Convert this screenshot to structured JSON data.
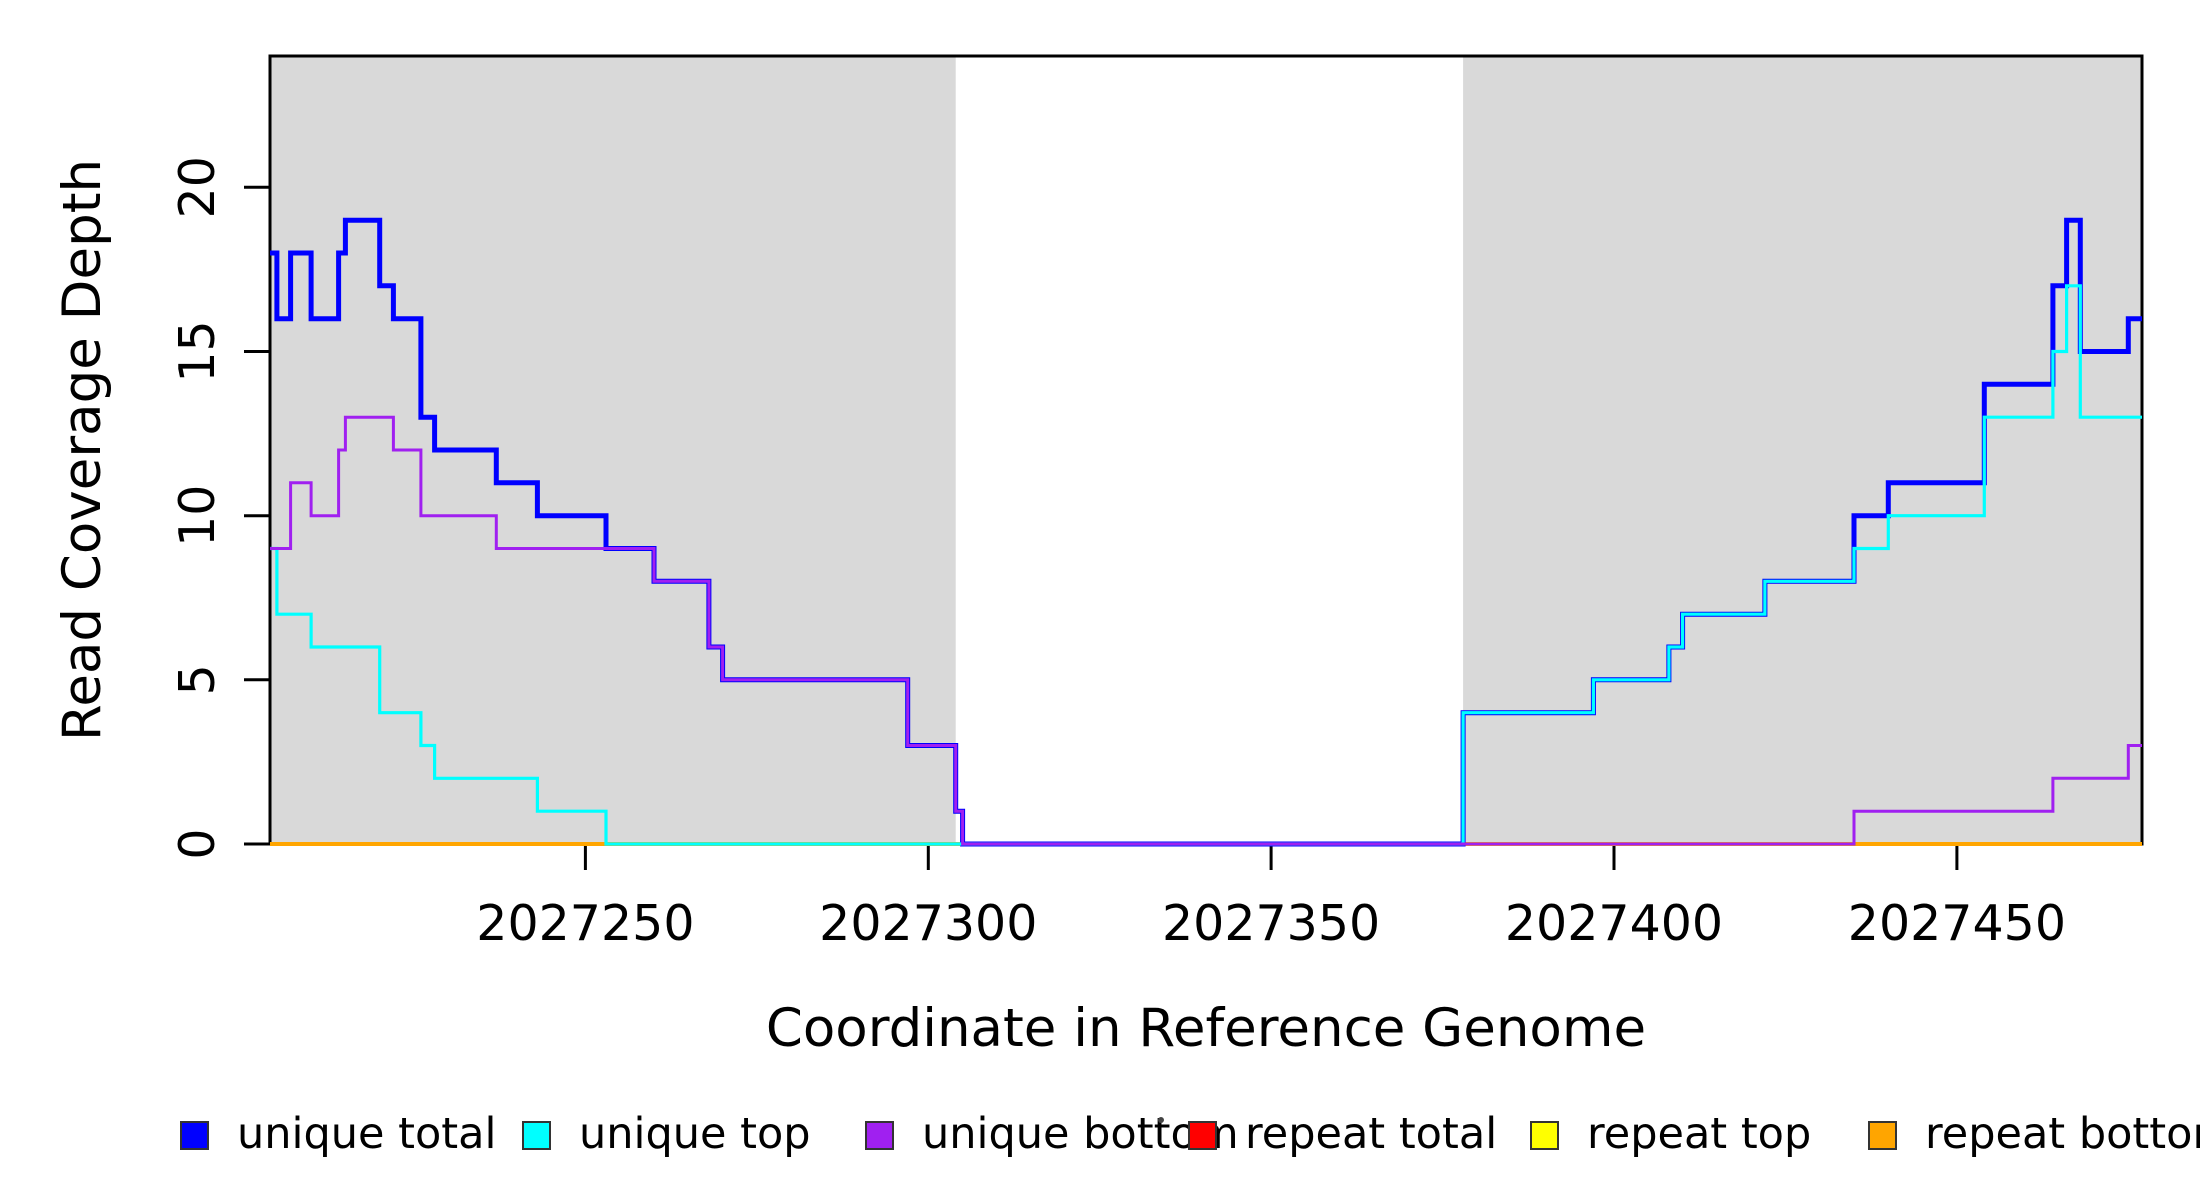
{
  "figure": {
    "background": "#FFFFFF",
    "plot_background": "#FFFFFF"
  },
  "chart_data": {
    "type": "line",
    "subtype": "step",
    "title": "",
    "xlabel": "Coordinate in Reference Genome",
    "ylabel": "Read Coverage Depth",
    "xlim": [
      2027204,
      2027477
    ],
    "ylim": [
      0,
      24
    ],
    "x_ticks": [
      2027250,
      2027300,
      2027350,
      2027400,
      2027450
    ],
    "x_tick_labels": [
      "2027250",
      "2027300",
      "2027350",
      "2027400",
      "2027450"
    ],
    "y_ticks": [
      0,
      5,
      10,
      15,
      20
    ],
    "y_tick_labels": [
      "0",
      "5",
      "10",
      "15",
      "20"
    ],
    "grid": false,
    "box_color": "#000000",
    "shaded_regions": [
      {
        "x_start": 2027204,
        "x_end": 2027304,
        "color": "#D9D9D9"
      },
      {
        "x_start": 2027378,
        "x_end": 2027477,
        "color": "#D9D9D9"
      }
    ],
    "series": [
      {
        "name": "unique total",
        "color": "#0000FF",
        "lwd": 5,
        "steps": [
          [
            2027204,
            18
          ],
          [
            2027205,
            16
          ],
          [
            2027207,
            18
          ],
          [
            2027210,
            16
          ],
          [
            2027214,
            18
          ],
          [
            2027215,
            19
          ],
          [
            2027220,
            17
          ],
          [
            2027222,
            16
          ],
          [
            2027226,
            13
          ],
          [
            2027228,
            12
          ],
          [
            2027237,
            11
          ],
          [
            2027243,
            10
          ],
          [
            2027253,
            9
          ],
          [
            2027260,
            8
          ],
          [
            2027268,
            6
          ],
          [
            2027270,
            5
          ],
          [
            2027297,
            3
          ],
          [
            2027304,
            1
          ],
          [
            2027305,
            0
          ],
          [
            2027378,
            4
          ],
          [
            2027397,
            5
          ],
          [
            2027408,
            6
          ],
          [
            2027410,
            7
          ],
          [
            2027422,
            8
          ],
          [
            2027435,
            10
          ],
          [
            2027440,
            11
          ],
          [
            2027454,
            14
          ],
          [
            2027464,
            17
          ],
          [
            2027466,
            19
          ],
          [
            2027468,
            15
          ],
          [
            2027475,
            16
          ]
        ]
      },
      {
        "name": "unique top",
        "color": "#00FFFF",
        "lwd": 3.2,
        "steps": [
          [
            2027204,
            9
          ],
          [
            2027205,
            7
          ],
          [
            2027210,
            6
          ],
          [
            2027220,
            4
          ],
          [
            2027226,
            3
          ],
          [
            2027228,
            2
          ],
          [
            2027243,
            1
          ],
          [
            2027253,
            0
          ],
          [
            2027378,
            4
          ],
          [
            2027397,
            5
          ],
          [
            2027408,
            6
          ],
          [
            2027410,
            7
          ],
          [
            2027422,
            8
          ],
          [
            2027435,
            9
          ],
          [
            2027440,
            10
          ],
          [
            2027454,
            13
          ],
          [
            2027464,
            15
          ],
          [
            2027466,
            17
          ],
          [
            2027468,
            13
          ]
        ]
      },
      {
        "name": "unique bottom",
        "color": "#A020F0",
        "lwd": 3,
        "steps": [
          [
            2027204,
            9
          ],
          [
            2027207,
            11
          ],
          [
            2027210,
            10
          ],
          [
            2027214,
            12
          ],
          [
            2027215,
            13
          ],
          [
            2027222,
            12
          ],
          [
            2027226,
            10
          ],
          [
            2027237,
            9
          ],
          [
            2027260,
            8
          ],
          [
            2027268,
            6
          ],
          [
            2027270,
            5
          ],
          [
            2027297,
            3
          ],
          [
            2027304,
            1
          ],
          [
            2027305,
            0
          ],
          [
            2027435,
            1
          ],
          [
            2027464,
            2
          ],
          [
            2027475,
            3
          ]
        ]
      },
      {
        "name": "repeat total",
        "color": "#FF0000",
        "lwd": 4,
        "steps": [
          [
            2027204,
            0
          ]
        ]
      },
      {
        "name": "repeat top",
        "color": "#FFFF00",
        "lwd": 4,
        "steps": [
          [
            2027204,
            0
          ]
        ]
      },
      {
        "name": "repeat bottom",
        "color": "#FFA500",
        "lwd": 4,
        "steps": [
          [
            2027204,
            0
          ]
        ]
      }
    ],
    "series_draw_order": [
      "repeat total",
      "repeat top",
      "repeat bottom",
      "unique total",
      "unique top",
      "unique bottom"
    ],
    "legend": {
      "position": "bottom",
      "entries": [
        {
          "label": "unique total",
          "color": "#0000FF"
        },
        {
          "label": "unique top",
          "color": "#00FFFF"
        },
        {
          "label": "unique bottom",
          "color": "#A020F0"
        },
        {
          "label": "repeat total",
          "color": "#FF0000"
        },
        {
          "label": "repeat top",
          "color": "#FFFF00"
        },
        {
          "label": "repeat bottom",
          "color": "#FFA500"
        }
      ]
    }
  }
}
